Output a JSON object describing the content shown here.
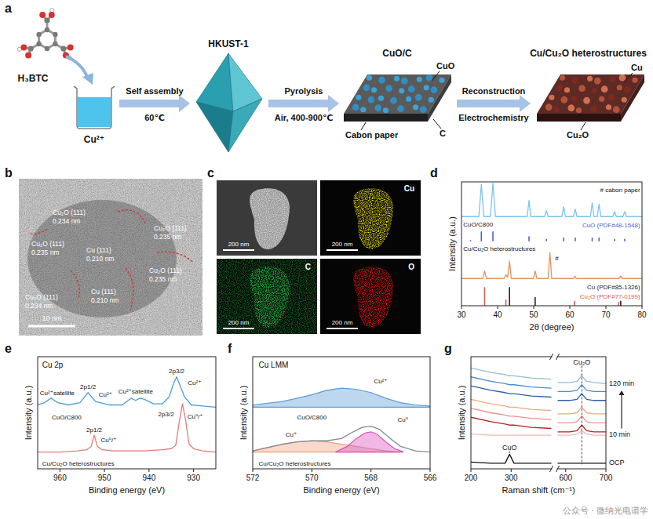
{
  "schematic": {
    "panel_label": "a",
    "precursor": "H₃BTC",
    "solution": "Cu²⁺",
    "step1": {
      "label": "Self assembly",
      "condition": "60℃"
    },
    "mof": "HKUST-1",
    "step2": {
      "label": "Pyrolysis",
      "condition": "Air, 400-900℃"
    },
    "product1": {
      "title": "CuO/C",
      "labels": [
        "CuO",
        "C",
        "Cabon paper"
      ]
    },
    "step3": {
      "label": "Reconstruction",
      "condition": "Electrochemistry"
    },
    "product2": {
      "title": "Cu/Cu₂O heterostructures",
      "labels": [
        "Cu",
        "Cu₂O"
      ]
    }
  },
  "tem": {
    "panel_label": "b",
    "annotations": [
      {
        "phase": "Cu₂O (111)",
        "spacing": "0.234 nm"
      },
      {
        "phase": "Cu₂O (111)",
        "spacing": "0.235 nm"
      },
      {
        "phase": "Cu₂O (111)",
        "spacing": "0.235 nm"
      },
      {
        "phase": "Cu (111)",
        "spacing": "0.210 nm"
      },
      {
        "phase": "Cu₂O (111)",
        "spacing": "0.235 nm"
      },
      {
        "phase": "Cu₂O (111)",
        "spacing": "0.234 nm"
      },
      {
        "phase": "Cu (111)",
        "spacing": "0.210 nm"
      }
    ],
    "scale_bar": "10 nm"
  },
  "eds": {
    "panel_label": "c",
    "maps": [
      {
        "scale_bar": "200 nm"
      },
      {
        "element": "Cu",
        "scale_bar": "200 nm"
      },
      {
        "element": "C",
        "scale_bar": "200 nm"
      },
      {
        "element": "O",
        "scale_bar": "200 nm"
      }
    ]
  },
  "watermark": "公众号 · 微纳光电谱学",
  "chart_data": [
    {
      "panel_label": "d",
      "type": "line",
      "x_label": "2θ (degree)",
      "y_label": "Intensity (a.u.)",
      "xlim": [
        30,
        80
      ],
      "xticks": [
        30,
        40,
        50,
        60,
        70,
        80
      ],
      "ylim": [
        0,
        100
      ],
      "tick_labels": "x",
      "annotations": [
        "# cabon paper",
        "#"
      ],
      "series": [
        {
          "name": "CuO/C800",
          "color": "#7cc4ec",
          "x": [
            30,
            34.8,
            35.5,
            36.2,
            38.0,
            38.7,
            39.4,
            48.2,
            48.7,
            49.2,
            53.0,
            53.5,
            54.0,
            57.8,
            58.3,
            58.8,
            61.0,
            61.5,
            62.0,
            65.7,
            66.2,
            66.7,
            67.6,
            68.1,
            68.6,
            71.9,
            72.4,
            72.9,
            74.7,
            75.2,
            75.7,
            80
          ],
          "values": [
            72,
            72,
            98,
            72,
            72,
            99,
            72,
            72,
            85,
            72,
            72,
            77,
            72,
            72,
            80,
            72,
            72,
            78,
            72,
            72,
            83,
            72,
            72,
            82,
            72,
            72,
            76,
            72,
            72,
            76,
            72,
            72
          ]
        },
        {
          "name": "CuO (PDF#48-1548)",
          "type": "stick",
          "color": "#4a62e0",
          "baseline": 52,
          "x": [
            32.5,
            35.5,
            38.7,
            48.7,
            53.5,
            58.3,
            61.5,
            66.2,
            68.1,
            72.4,
            75.2
          ],
          "values": [
            53,
            60,
            60,
            56,
            54,
            55,
            55,
            55,
            55,
            54,
            54
          ]
        },
        {
          "name": "Cu/Cu₂O heterostructures",
          "color": "#e8925a",
          "x": [
            30,
            35.9,
            36.4,
            36.9,
            41.8,
            42.3,
            42.8,
            43.3,
            43.8,
            49.9,
            50.4,
            50.9,
            54.0,
            54.5,
            55.0,
            61.0,
            61.4,
            61.8,
            73.6,
            74.1,
            74.6,
            80
          ],
          "values": [
            22,
            22,
            28,
            22,
            22,
            25,
            23,
            36,
            22,
            22,
            28,
            22,
            22,
            43,
            22,
            22,
            24,
            22,
            22,
            24,
            22,
            22
          ]
        },
        {
          "name": "Cu (PDF#85-1326)",
          "type": "stick",
          "color": "#222222",
          "baseline": 0,
          "x": [
            43.3,
            50.4,
            74.1
          ],
          "values": [
            15,
            7,
            4
          ]
        },
        {
          "name": "Cu₂O (PDF#77-0199)",
          "type": "stick",
          "color": "#e45a5a",
          "baseline": 0,
          "x": [
            36.4,
            42.3,
            61.3,
            73.5
          ],
          "values": [
            15,
            5,
            4,
            3
          ]
        }
      ]
    },
    {
      "panel_label": "e",
      "type": "line",
      "title": "Cu 2p",
      "x_label": "Binding energy (eV)",
      "y_label": "Intensity (a.u.)",
      "xlim": [
        965,
        925
      ],
      "xticks": [
        960,
        950,
        940,
        930
      ],
      "ylim": [
        0,
        100
      ],
      "tick_labels": "x",
      "annotations": [
        "Cu²⁺satellite",
        "2p1/2",
        "Cu²⁺",
        "Cu²⁺satellite",
        "2p3/2",
        "Cu²⁺",
        "2p1/2",
        "Cu⁰/⁺",
        "2p3/2",
        "Cu⁰/⁺"
      ],
      "series": [
        {
          "name": "CuO/C800",
          "color": "#4d9fd6",
          "x": [
            965,
            963.5,
            962,
            960.5,
            958,
            955.5,
            953.7,
            952,
            949,
            946,
            944,
            943,
            942,
            941,
            939,
            937,
            935.5,
            934.5,
            933.8,
            933,
            932,
            930.5,
            928,
            925
          ],
          "values": [
            57,
            59,
            63,
            59,
            57,
            59,
            68,
            60,
            57,
            57,
            63,
            61,
            63,
            62,
            58,
            58,
            64,
            76,
            82,
            74,
            64,
            57,
            56,
            55
          ]
        },
        {
          "name": "Cu/Cu₂O heterostructures",
          "color": "#e47b7b",
          "x": [
            965,
            960,
            956,
            954,
            953,
            952.3,
            951.6,
            950.5,
            948,
            945,
            941,
            937,
            935,
            934,
            933.2,
            932.5,
            931.8,
            931,
            930,
            928,
            925
          ],
          "values": [
            15,
            15,
            16,
            17,
            20,
            30,
            20,
            17,
            16,
            16,
            16,
            17,
            18,
            21,
            42,
            58,
            44,
            22,
            18,
            16,
            15
          ]
        }
      ]
    },
    {
      "panel_label": "f",
      "type": "line",
      "title": "Cu LMM",
      "x_label": "Binding energy (eV)",
      "y_label": "Intensity (a.u.)",
      "xlim": [
        572,
        566
      ],
      "xticks": [
        572,
        570,
        568,
        566
      ],
      "ylim": [
        0,
        100
      ],
      "tick_labels": "x",
      "annotations": [
        "CuO/C800",
        "Cu/Cu₂O heterostructures"
      ],
      "series": [
        {
          "name": "Cu²⁺",
          "type": "area",
          "color": "#5b9bd5",
          "baseline": 55,
          "x": [
            572,
            571,
            570,
            569.5,
            569,
            568.5,
            568,
            567.5,
            567,
            566.5,
            566
          ],
          "values": [
            57,
            60,
            66,
            70,
            72,
            71,
            68,
            63,
            59,
            57,
            56
          ]
        },
        {
          "name": "Cu⁺",
          "type": "area",
          "color": "#f0a07c",
          "baseline": 15,
          "x": [
            572,
            571.5,
            571,
            570.5,
            570,
            569.5,
            569,
            568.5,
            568,
            567.5,
            567
          ],
          "values": [
            16,
            19,
            22,
            24,
            25,
            24,
            22,
            20,
            18,
            16,
            15
          ]
        },
        {
          "name": "Cu⁰",
          "type": "area",
          "color": "#d94fbf",
          "baseline": 15,
          "x": [
            569.2,
            568.8,
            568.5,
            568.2,
            568,
            567.8,
            567.5,
            567.2,
            566.9
          ],
          "values": [
            15,
            20,
            27,
            32,
            33,
            31,
            24,
            18,
            15
          ]
        },
        {
          "color": "#7f8c99",
          "x": [
            572,
            571.5,
            571,
            570.5,
            570,
            569.5,
            569,
            568.6,
            568.3,
            568,
            567.7,
            567.3,
            567,
            566.5,
            566
          ],
          "values": [
            16,
            19,
            22,
            24,
            25,
            25,
            27,
            33,
            37,
            38,
            35,
            26,
            20,
            16,
            15
          ]
        }
      ]
    },
    {
      "panel_label": "g",
      "type": "line",
      "x_label": "Raman shift (cm⁻¹)",
      "y_label": "Intensity (a.u.)",
      "xlim": [
        200,
        700
      ],
      "x_break": [
        400,
        580
      ],
      "xticks": [
        200,
        300,
        600,
        700
      ],
      "ylim": [
        0,
        100
      ],
      "tick_labels": "x",
      "annotations": [
        "CuO",
        "Cu₂O"
      ],
      "x": [
        200,
        250,
        285,
        296,
        307,
        350,
        400,
        490,
        580,
        610,
        628,
        640,
        652,
        670,
        700
      ],
      "series": [
        {
          "name": "OCP",
          "color": "#111111",
          "values": [
            6,
            5,
            5,
            13,
            5,
            5,
            5,
            null,
            5,
            5,
            5,
            5,
            5,
            5,
            5
          ]
        },
        {
          "name": "10 min",
          "color": "#f4b6b6",
          "values": [
            31,
            30,
            30,
            30,
            30,
            30,
            30,
            null,
            30,
            30,
            31,
            34,
            31,
            30,
            30
          ]
        },
        {
          "color": "#b22222",
          "values": [
            46,
            42,
            40,
            39,
            39,
            37,
            36,
            null,
            33,
            33,
            34,
            39,
            34,
            33,
            33
          ]
        },
        {
          "color": "#e8918f",
          "values": [
            54,
            50,
            48,
            47,
            47,
            45,
            44,
            null,
            41,
            41,
            42,
            47,
            42,
            41,
            41
          ]
        },
        {
          "color": "#f4a582",
          "values": [
            62,
            58,
            56,
            55,
            55,
            53,
            52,
            null,
            49,
            49,
            50,
            55,
            50,
            49,
            49
          ]
        },
        {
          "color": "#2b5ea7",
          "values": [
            74,
            70,
            68,
            67,
            67,
            65,
            64,
            null,
            61,
            61,
            62,
            67,
            62,
            61,
            61
          ]
        },
        {
          "color": "#4a8fd0",
          "values": [
            82,
            78,
            76,
            75,
            75,
            73,
            72,
            null,
            69,
            69,
            70,
            75,
            70,
            69,
            69
          ]
        },
        {
          "name": "120 min",
          "color": "#93bcd9",
          "values": [
            90,
            86,
            84,
            83,
            83,
            81,
            80,
            null,
            77,
            77,
            78,
            83,
            78,
            77,
            76
          ]
        }
      ]
    }
  ]
}
